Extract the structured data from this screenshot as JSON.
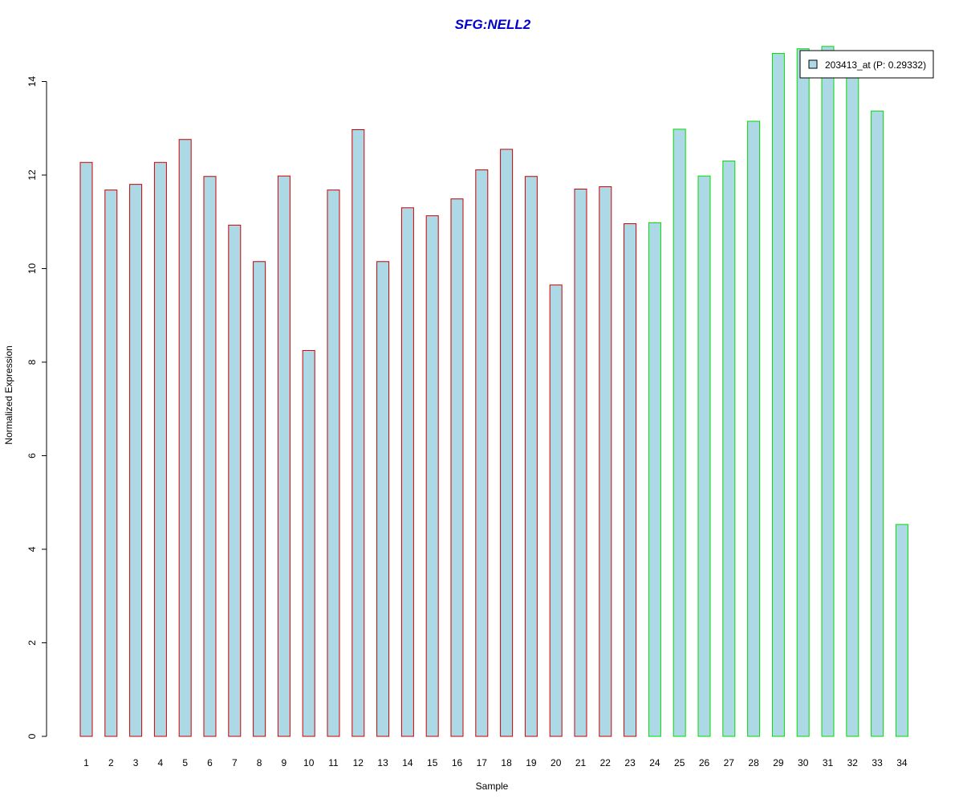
{
  "chart_data": {
    "type": "bar",
    "title": "SFG:NELL2",
    "title_color": "#0000CC",
    "xlabel": "Sample",
    "ylabel": "Normalized Expression",
    "categories": [
      "1",
      "2",
      "3",
      "4",
      "5",
      "6",
      "7",
      "8",
      "9",
      "10",
      "11",
      "12",
      "13",
      "14",
      "15",
      "16",
      "17",
      "18",
      "19",
      "20",
      "21",
      "22",
      "23",
      "24",
      "25",
      "26",
      "27",
      "28",
      "29",
      "30",
      "31",
      "32",
      "33",
      "34"
    ],
    "series": [
      {
        "name": "203413_at (P: 0.29332)",
        "fill_color": "#ADD8E6",
        "values": [
          12.27,
          11.68,
          11.8,
          12.27,
          12.76,
          11.97,
          10.93,
          10.15,
          11.98,
          8.25,
          11.68,
          12.97,
          10.15,
          11.3,
          11.13,
          11.49,
          12.11,
          12.55,
          11.97,
          9.65,
          11.7,
          11.75,
          10.96,
          10.98,
          12.98,
          11.98,
          12.3,
          13.15,
          14.6,
          14.7,
          14.75,
          14.3,
          13.37,
          4.53
        ]
      }
    ],
    "group_border_colors": [
      "#CC0000",
      "#CC0000",
      "#CC0000",
      "#CC0000",
      "#CC0000",
      "#CC0000",
      "#CC0000",
      "#CC0000",
      "#CC0000",
      "#CC0000",
      "#CC0000",
      "#CC0000",
      "#CC0000",
      "#CC0000",
      "#CC0000",
      "#CC0000",
      "#CC0000",
      "#CC0000",
      "#CC0000",
      "#CC0000",
      "#CC0000",
      "#CC0000",
      "#CC0000",
      "#00DD00",
      "#00DD00",
      "#00DD00",
      "#00DD00",
      "#00DD00",
      "#00DD00",
      "#00DD00",
      "#00DD00",
      "#00DD00",
      "#00DD00",
      "#00DD00"
    ],
    "yticks": [
      0,
      2,
      4,
      6,
      8,
      10,
      12,
      14
    ],
    "ylim": [
      0,
      14.7
    ],
    "grid": false,
    "legend_position": "top-right"
  }
}
